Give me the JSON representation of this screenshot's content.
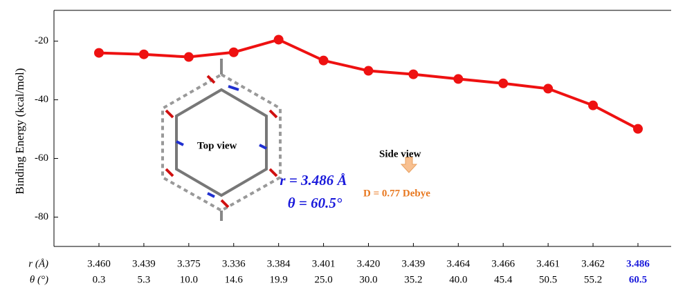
{
  "chart_data": {
    "type": "line",
    "y_label": "Binding Energy (kcal/mol)",
    "row_labels": [
      "r (Å)",
      "θ (°)"
    ],
    "categories": [
      "3.460",
      "3.439",
      "3.375",
      "3.336",
      "3.384",
      "3.401",
      "3.420",
      "3.439",
      "3.464",
      "3.466",
      "3.461",
      "3.462",
      "3.486"
    ],
    "theta_labels": [
      "0.3",
      "5.3",
      "10.0",
      "14.6",
      "19.9",
      "25.0",
      "30.0",
      "35.2",
      "40.0",
      "45.4",
      "50.5",
      "55.2",
      "60.5"
    ],
    "values": [
      -24.0,
      -24.5,
      -25.4,
      -23.8,
      -19.5,
      -26.6,
      -30.1,
      -31.3,
      -32.9,
      -34.4,
      -36.2,
      -41.9,
      -49.9
    ],
    "color": "#ee1111",
    "ylim": [
      -90,
      -9.5
    ],
    "yticks": [
      -20,
      -40,
      -60,
      -80
    ],
    "annotations": {
      "top_view": "Top view",
      "side_view": "Side view",
      "r_label": "r = 3.486 Å",
      "theta_label": "θ = 60.5°",
      "dipole": "D = 0.77 Debye"
    }
  }
}
